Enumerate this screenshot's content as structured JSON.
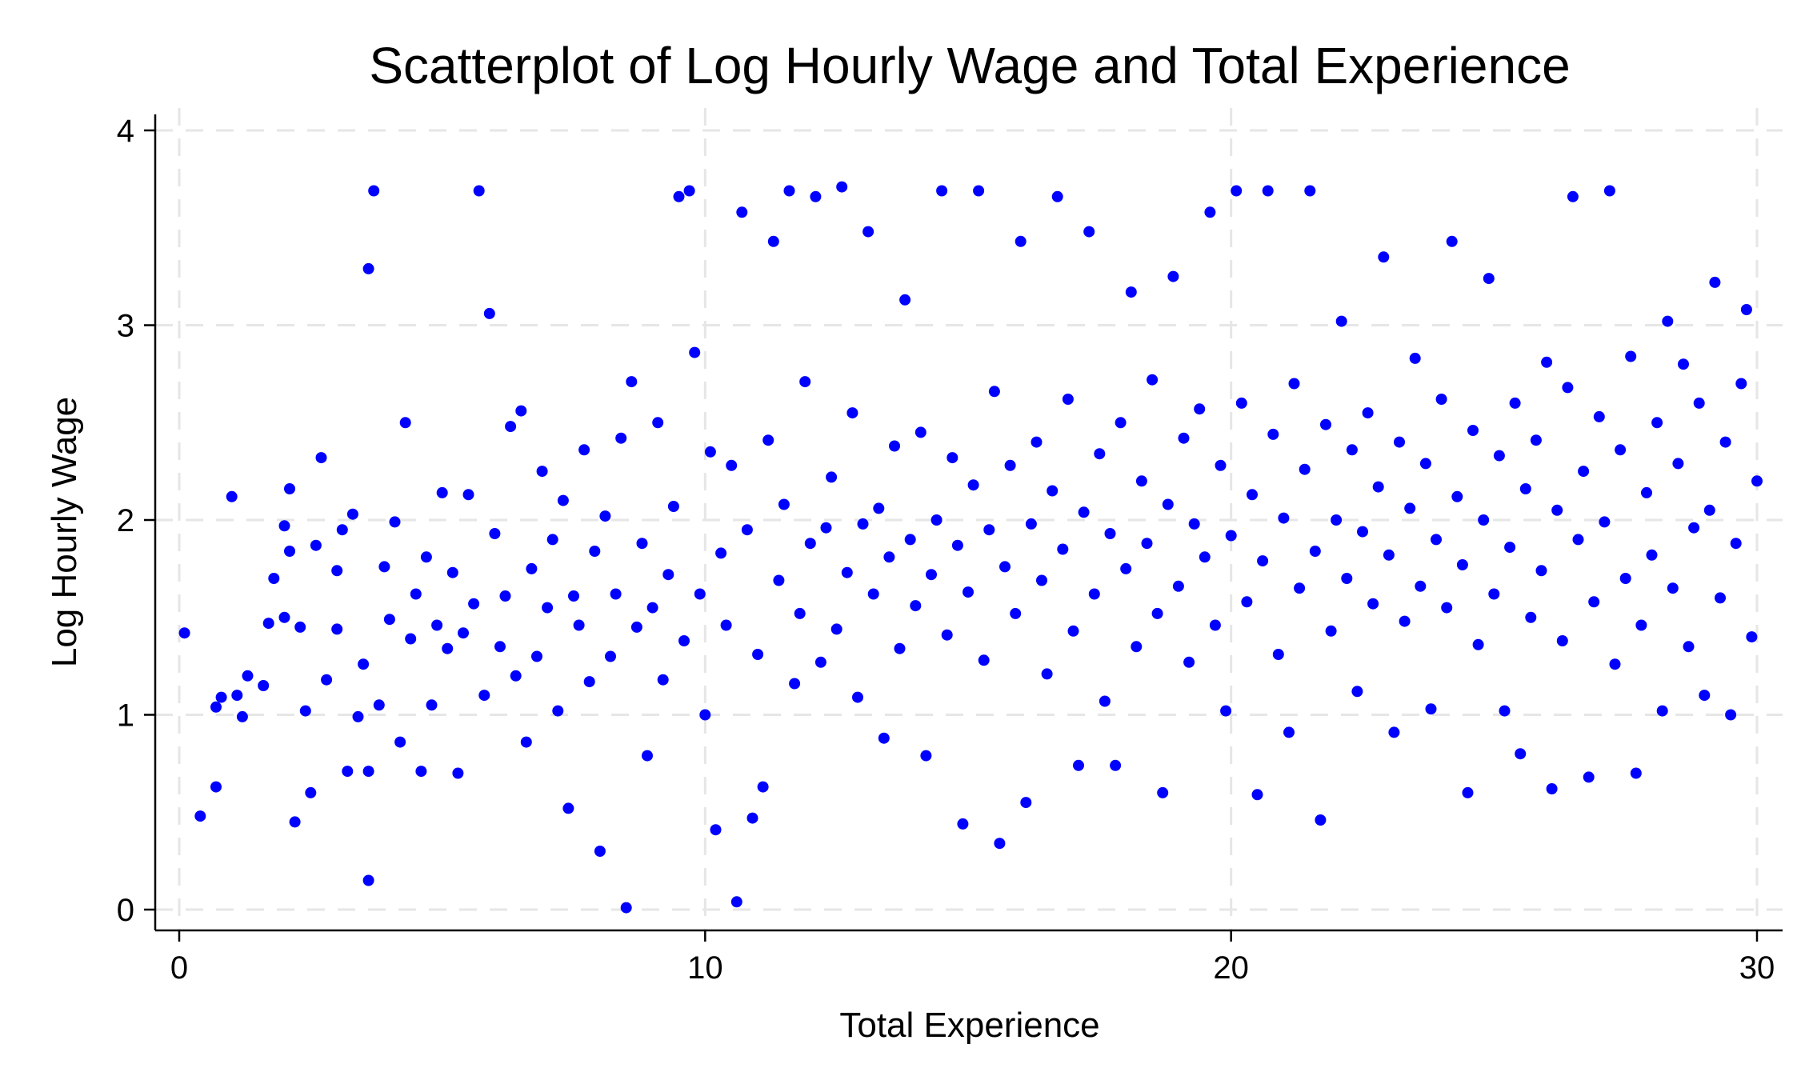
{
  "chart_data": {
    "type": "scatter",
    "title": "Scatterplot of Log Hourly Wage and Total Experience",
    "xlabel": "Total Experience",
    "ylabel": "Log Hourly Wage",
    "xlim": [
      0,
      30
    ],
    "ylim": [
      0,
      4
    ],
    "xticks": [
      0,
      10,
      20,
      30
    ],
    "yticks": [
      0,
      1,
      2,
      3,
      4
    ],
    "grid": true,
    "legend": "none",
    "marker_color": "#0000ff",
    "series": [
      {
        "points": [
          [
            0.1,
            1.42
          ],
          [
            0.4,
            0.48
          ],
          [
            0.7,
            0.63
          ],
          [
            0.7,
            1.04
          ],
          [
            0.8,
            1.09
          ],
          [
            1.0,
            2.12
          ],
          [
            1.1,
            1.1
          ],
          [
            1.2,
            0.99
          ],
          [
            1.3,
            1.2
          ],
          [
            1.6,
            1.15
          ],
          [
            1.7,
            1.47
          ],
          [
            1.8,
            1.7
          ],
          [
            2.0,
            1.97
          ],
          [
            2.0,
            1.5
          ],
          [
            2.1,
            1.84
          ],
          [
            2.1,
            2.16
          ],
          [
            2.2,
            0.45
          ],
          [
            2.3,
            1.45
          ],
          [
            2.4,
            1.02
          ],
          [
            2.5,
            0.6
          ],
          [
            2.6,
            1.87
          ],
          [
            2.7,
            2.32
          ],
          [
            2.8,
            1.18
          ],
          [
            3.0,
            1.44
          ],
          [
            3.0,
            1.74
          ],
          [
            3.1,
            1.95
          ],
          [
            3.2,
            0.71
          ],
          [
            3.3,
            2.03
          ],
          [
            3.4,
            0.99
          ],
          [
            3.5,
            1.26
          ],
          [
            3.6,
            0.15
          ],
          [
            3.6,
            0.71
          ],
          [
            3.6,
            3.29
          ],
          [
            3.7,
            3.69
          ],
          [
            3.8,
            1.05
          ],
          [
            3.9,
            1.76
          ],
          [
            4.0,
            1.49
          ],
          [
            4.1,
            1.99
          ],
          [
            4.2,
            0.86
          ],
          [
            4.3,
            2.5
          ],
          [
            4.4,
            1.39
          ],
          [
            4.5,
            1.62
          ],
          [
            4.6,
            0.71
          ],
          [
            4.7,
            1.81
          ],
          [
            4.8,
            1.05
          ],
          [
            4.9,
            1.46
          ],
          [
            5.0,
            2.14
          ],
          [
            5.1,
            1.34
          ],
          [
            5.2,
            1.73
          ],
          [
            5.3,
            0.7
          ],
          [
            5.4,
            1.42
          ],
          [
            5.5,
            2.13
          ],
          [
            5.6,
            1.57
          ],
          [
            5.7,
            3.69
          ],
          [
            5.8,
            1.1
          ],
          [
            5.9,
            3.06
          ],
          [
            6.0,
            1.93
          ],
          [
            6.1,
            1.35
          ],
          [
            6.2,
            1.61
          ],
          [
            6.3,
            2.48
          ],
          [
            6.4,
            1.2
          ],
          [
            6.5,
            2.56
          ],
          [
            6.6,
            0.86
          ],
          [
            6.7,
            1.75
          ],
          [
            6.8,
            1.3
          ],
          [
            6.9,
            2.25
          ],
          [
            7.0,
            1.55
          ],
          [
            7.1,
            1.9
          ],
          [
            7.2,
            1.02
          ],
          [
            7.3,
            2.1
          ],
          [
            7.4,
            0.52
          ],
          [
            7.5,
            1.61
          ],
          [
            7.6,
            1.46
          ],
          [
            7.7,
            2.36
          ],
          [
            7.8,
            1.17
          ],
          [
            7.9,
            1.84
          ],
          [
            8.0,
            0.3
          ],
          [
            8.1,
            2.02
          ],
          [
            8.2,
            1.3
          ],
          [
            8.3,
            1.62
          ],
          [
            8.4,
            2.42
          ],
          [
            8.5,
            0.01
          ],
          [
            8.6,
            2.71
          ],
          [
            8.7,
            1.45
          ],
          [
            8.8,
            1.88
          ],
          [
            8.9,
            0.79
          ],
          [
            9.0,
            1.55
          ],
          [
            9.1,
            2.5
          ],
          [
            9.2,
            1.18
          ],
          [
            9.3,
            1.72
          ],
          [
            9.4,
            2.07
          ],
          [
            9.5,
            3.66
          ],
          [
            9.6,
            1.38
          ],
          [
            9.7,
            3.69
          ],
          [
            9.8,
            2.86
          ],
          [
            9.9,
            1.62
          ],
          [
            10.0,
            1.0
          ],
          [
            10.1,
            2.35
          ],
          [
            10.2,
            0.41
          ],
          [
            10.3,
            1.83
          ],
          [
            10.4,
            1.46
          ],
          [
            10.5,
            2.28
          ],
          [
            10.6,
            0.04
          ],
          [
            10.7,
            3.58
          ],
          [
            10.8,
            1.95
          ],
          [
            10.9,
            0.47
          ],
          [
            11.0,
            1.31
          ],
          [
            11.1,
            0.63
          ],
          [
            11.2,
            2.41
          ],
          [
            11.3,
            3.43
          ],
          [
            11.4,
            1.69
          ],
          [
            11.5,
            2.08
          ],
          [
            11.6,
            3.69
          ],
          [
            11.7,
            1.16
          ],
          [
            11.8,
            1.52
          ],
          [
            11.9,
            2.71
          ],
          [
            12.0,
            1.88
          ],
          [
            12.1,
            3.66
          ],
          [
            12.2,
            1.27
          ],
          [
            12.3,
            1.96
          ],
          [
            12.4,
            2.22
          ],
          [
            12.5,
            1.44
          ],
          [
            12.6,
            3.71
          ],
          [
            12.7,
            1.73
          ],
          [
            12.8,
            2.55
          ],
          [
            12.9,
            1.09
          ],
          [
            13.0,
            1.98
          ],
          [
            13.1,
            3.48
          ],
          [
            13.2,
            1.62
          ],
          [
            13.3,
            2.06
          ],
          [
            13.4,
            0.88
          ],
          [
            13.5,
            1.81
          ],
          [
            13.6,
            2.38
          ],
          [
            13.7,
            1.34
          ],
          [
            13.8,
            3.13
          ],
          [
            13.9,
            1.9
          ],
          [
            14.0,
            1.56
          ],
          [
            14.1,
            2.45
          ],
          [
            14.2,
            0.79
          ],
          [
            14.3,
            1.72
          ],
          [
            14.4,
            2.0
          ],
          [
            14.5,
            3.69
          ],
          [
            14.6,
            1.41
          ],
          [
            14.7,
            2.32
          ],
          [
            14.8,
            1.87
          ],
          [
            14.9,
            0.44
          ],
          [
            15.0,
            1.63
          ],
          [
            15.1,
            2.18
          ],
          [
            15.2,
            3.69
          ],
          [
            15.3,
            1.28
          ],
          [
            15.4,
            1.95
          ],
          [
            15.5,
            2.66
          ],
          [
            15.6,
            0.34
          ],
          [
            15.7,
            1.76
          ],
          [
            15.8,
            2.28
          ],
          [
            15.9,
            1.52
          ],
          [
            16.0,
            3.43
          ],
          [
            16.1,
            0.55
          ],
          [
            16.2,
            1.98
          ],
          [
            16.3,
            2.4
          ],
          [
            16.4,
            1.69
          ],
          [
            16.5,
            1.21
          ],
          [
            16.6,
            2.15
          ],
          [
            16.7,
            3.66
          ],
          [
            16.8,
            1.85
          ],
          [
            16.9,
            2.62
          ],
          [
            17.0,
            1.43
          ],
          [
            17.1,
            0.74
          ],
          [
            17.2,
            2.04
          ],
          [
            17.3,
            3.48
          ],
          [
            17.4,
            1.62
          ],
          [
            17.5,
            2.34
          ],
          [
            17.6,
            1.07
          ],
          [
            17.7,
            1.93
          ],
          [
            17.8,
            0.74
          ],
          [
            17.9,
            2.5
          ],
          [
            18.0,
            1.75
          ],
          [
            18.1,
            3.17
          ],
          [
            18.2,
            1.35
          ],
          [
            18.3,
            2.2
          ],
          [
            18.4,
            1.88
          ],
          [
            18.5,
            2.72
          ],
          [
            18.6,
            1.52
          ],
          [
            18.7,
            0.6
          ],
          [
            18.8,
            2.08
          ],
          [
            18.9,
            3.25
          ],
          [
            19.0,
            1.66
          ],
          [
            19.1,
            2.42
          ],
          [
            19.2,
            1.27
          ],
          [
            19.3,
            1.98
          ],
          [
            19.4,
            2.57
          ],
          [
            19.5,
            1.81
          ],
          [
            19.6,
            3.58
          ],
          [
            19.7,
            1.46
          ],
          [
            19.8,
            2.28
          ],
          [
            19.9,
            1.02
          ],
          [
            20.0,
            1.92
          ],
          [
            20.1,
            3.69
          ],
          [
            20.2,
            2.6
          ],
          [
            20.3,
            1.58
          ],
          [
            20.4,
            2.13
          ],
          [
            20.5,
            0.59
          ],
          [
            20.6,
            1.79
          ],
          [
            20.7,
            3.69
          ],
          [
            20.8,
            2.44
          ],
          [
            20.9,
            1.31
          ],
          [
            21.0,
            2.01
          ],
          [
            21.1,
            0.91
          ],
          [
            21.2,
            2.7
          ],
          [
            21.3,
            1.65
          ],
          [
            21.4,
            2.26
          ],
          [
            21.5,
            3.69
          ],
          [
            21.6,
            1.84
          ],
          [
            21.7,
            0.46
          ],
          [
            21.8,
            2.49
          ],
          [
            21.9,
            1.43
          ],
          [
            22.0,
            2.0
          ],
          [
            22.1,
            3.02
          ],
          [
            22.2,
            1.7
          ],
          [
            22.3,
            2.36
          ],
          [
            22.4,
            1.12
          ],
          [
            22.5,
            1.94
          ],
          [
            22.6,
            2.55
          ],
          [
            22.7,
            1.57
          ],
          [
            22.8,
            2.17
          ],
          [
            22.9,
            3.35
          ],
          [
            23.0,
            1.82
          ],
          [
            23.1,
            0.91
          ],
          [
            23.2,
            2.4
          ],
          [
            23.3,
            1.48
          ],
          [
            23.4,
            2.06
          ],
          [
            23.5,
            2.83
          ],
          [
            23.6,
            1.66
          ],
          [
            23.7,
            2.29
          ],
          [
            23.8,
            1.03
          ],
          [
            23.9,
            1.9
          ],
          [
            24.0,
            2.62
          ],
          [
            24.1,
            1.55
          ],
          [
            24.2,
            3.43
          ],
          [
            24.3,
            2.12
          ],
          [
            24.4,
            1.77
          ],
          [
            24.5,
            0.6
          ],
          [
            24.6,
            2.46
          ],
          [
            24.7,
            1.36
          ],
          [
            24.8,
            2.0
          ],
          [
            24.9,
            3.24
          ],
          [
            25.0,
            1.62
          ],
          [
            25.1,
            2.33
          ],
          [
            25.2,
            1.02
          ],
          [
            25.3,
            1.86
          ],
          [
            25.4,
            2.6
          ],
          [
            25.5,
            0.8
          ],
          [
            25.6,
            2.16
          ],
          [
            25.7,
            1.5
          ],
          [
            25.8,
            2.41
          ],
          [
            25.9,
            1.74
          ],
          [
            26.0,
            2.81
          ],
          [
            26.1,
            0.62
          ],
          [
            26.2,
            2.05
          ],
          [
            26.3,
            1.38
          ],
          [
            26.4,
            2.68
          ],
          [
            26.5,
            3.66
          ],
          [
            26.6,
            1.9
          ],
          [
            26.7,
            2.25
          ],
          [
            26.8,
            0.68
          ],
          [
            26.9,
            1.58
          ],
          [
            27.0,
            2.53
          ],
          [
            27.1,
            1.99
          ],
          [
            27.2,
            3.69
          ],
          [
            27.3,
            1.26
          ],
          [
            27.4,
            2.36
          ],
          [
            27.5,
            1.7
          ],
          [
            27.6,
            2.84
          ],
          [
            27.7,
            0.7
          ],
          [
            27.8,
            1.46
          ],
          [
            27.9,
            2.14
          ],
          [
            28.0,
            1.82
          ],
          [
            28.1,
            2.5
          ],
          [
            28.2,
            1.02
          ],
          [
            28.3,
            3.02
          ],
          [
            28.4,
            1.65
          ],
          [
            28.5,
            2.29
          ],
          [
            28.6,
            2.8
          ],
          [
            28.7,
            1.35
          ],
          [
            28.8,
            1.96
          ],
          [
            28.9,
            2.6
          ],
          [
            29.0,
            1.1
          ],
          [
            29.1,
            2.05
          ],
          [
            29.2,
            3.22
          ],
          [
            29.3,
            1.6
          ],
          [
            29.4,
            2.4
          ],
          [
            29.5,
            1.0
          ],
          [
            29.6,
            1.88
          ],
          [
            29.7,
            2.7
          ],
          [
            29.8,
            3.08
          ],
          [
            29.9,
            1.4
          ],
          [
            30.0,
            2.2
          ]
        ]
      }
    ]
  }
}
